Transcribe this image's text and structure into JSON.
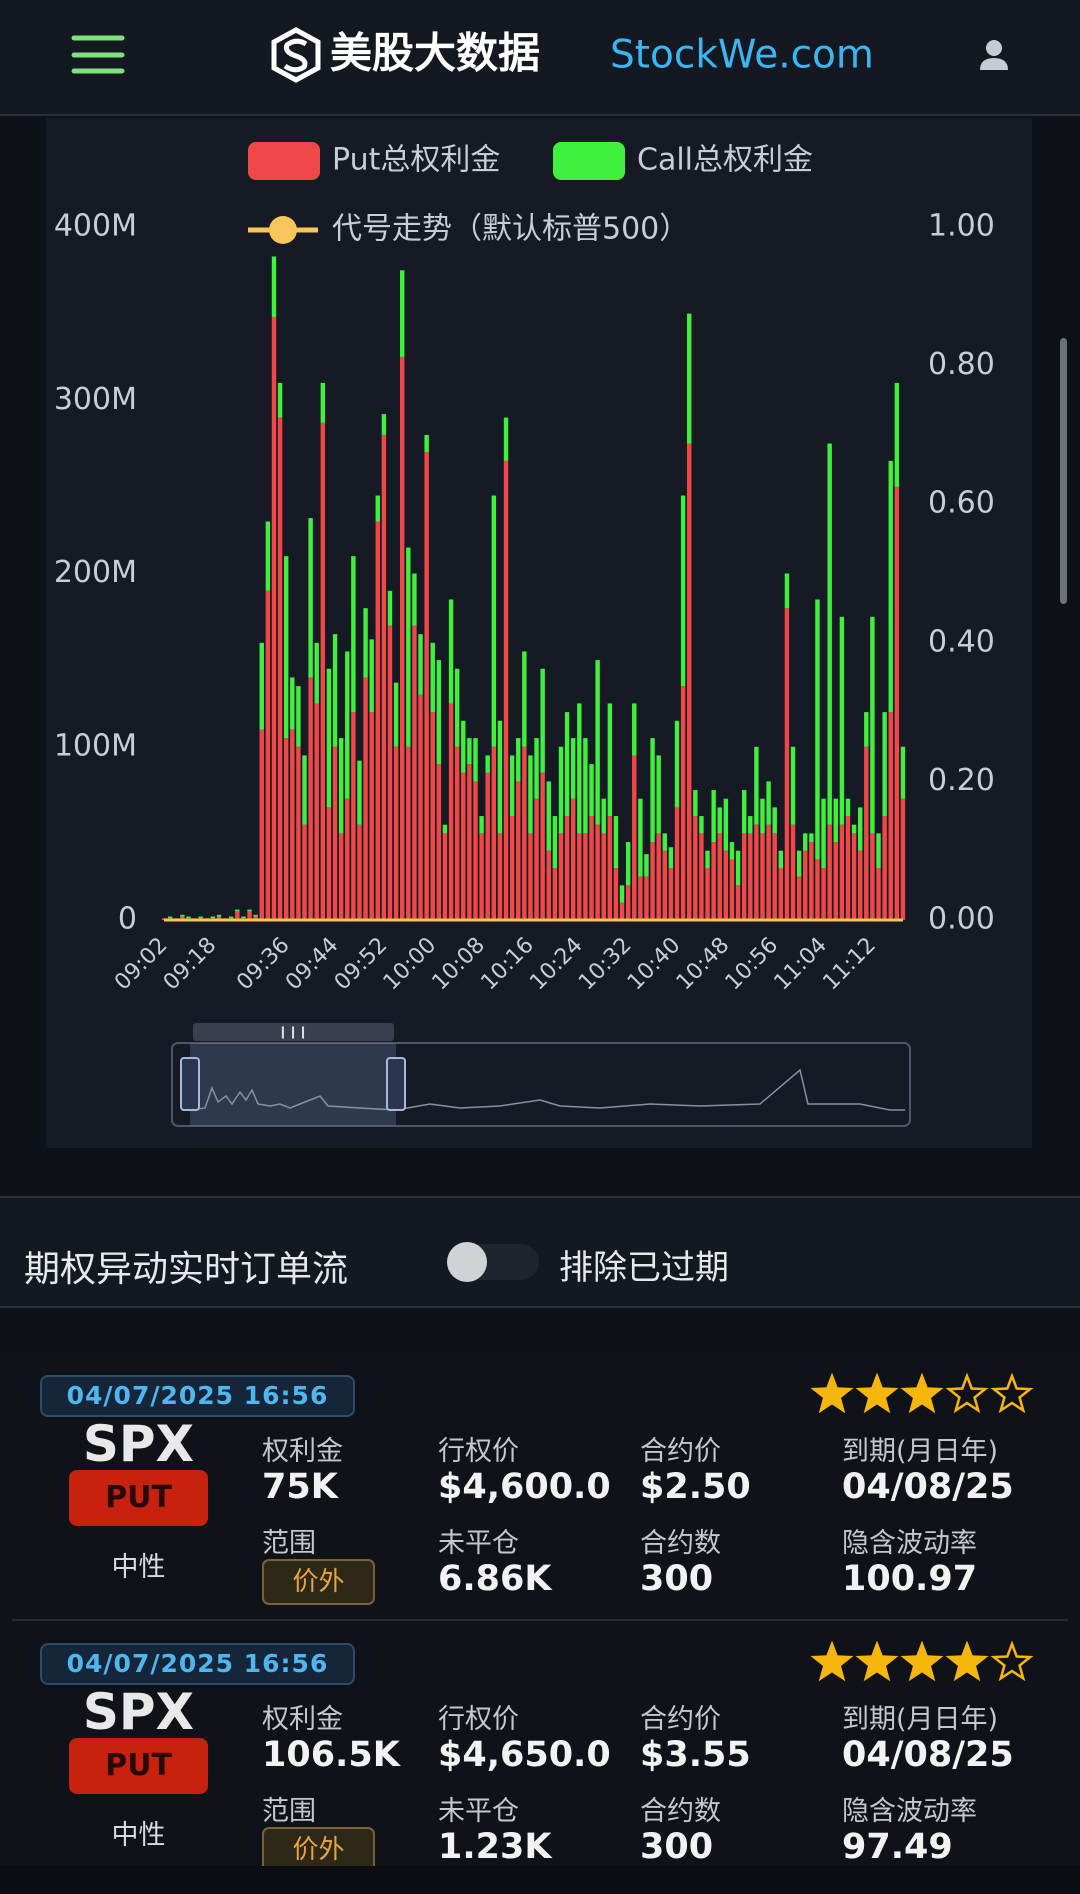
{
  "header": {
    "brand": "美股大数据",
    "site": "StockWe.com"
  },
  "chart_data": {
    "type": "bar",
    "stacked": true,
    "grid": false,
    "legend": "top",
    "categories": [
      "09:02",
      null,
      null,
      null,
      null,
      null,
      null,
      null,
      "09:18",
      null,
      null,
      null,
      null,
      null,
      null,
      null,
      null,
      null,
      null,
      null,
      "09:36",
      null,
      null,
      null,
      null,
      null,
      null,
      null,
      "09:44",
      null,
      null,
      null,
      null,
      null,
      null,
      null,
      "09:52",
      null,
      null,
      null,
      null,
      null,
      null,
      null,
      "10:00",
      null,
      null,
      null,
      null,
      null,
      null,
      null,
      "10:08",
      null,
      null,
      null,
      null,
      null,
      null,
      null,
      "10:16",
      null,
      null,
      null,
      null,
      null,
      null,
      null,
      "10:24",
      null,
      null,
      null,
      null,
      null,
      null,
      null,
      "10:32",
      null,
      null,
      null,
      null,
      null,
      null,
      null,
      "10:40",
      null,
      null,
      null,
      null,
      null,
      null,
      null,
      "10:48",
      null,
      null,
      null,
      null,
      null,
      null,
      null,
      "10:56",
      null,
      null,
      null,
      null,
      null,
      null,
      null,
      "11:04",
      null,
      null,
      null,
      null,
      null,
      null,
      null,
      "11:12",
      null,
      null,
      null,
      null,
      null
    ],
    "ylim": [
      0,
      400000000
    ],
    "yticks": [
      {
        "value": 0,
        "label": "0"
      },
      {
        "value": 100000000,
        "label": "100M"
      },
      {
        "value": 200000000,
        "label": "200M"
      },
      {
        "value": 300000000,
        "label": "300M"
      },
      {
        "value": 400000000,
        "label": "400M"
      }
    ],
    "y2lim": [
      0,
      1
    ],
    "y2ticks": [
      {
        "value": 0,
        "label": "0.00"
      },
      {
        "value": 0.2,
        "label": "0.20"
      },
      {
        "value": 0.4,
        "label": "0.40"
      },
      {
        "value": 0.6,
        "label": "0.60"
      },
      {
        "value": 0.8,
        "label": "0.80"
      },
      {
        "value": 1,
        "label": "1.00"
      }
    ],
    "series": [
      {
        "name": "Put总权利金",
        "color": "#f04848",
        "values": [
          1000000,
          1000000,
          1000000,
          2000000,
          1000000,
          1000000,
          1000000,
          1000000,
          1000000,
          2000000,
          1000000,
          1000000,
          5000000,
          1000000,
          5000000,
          2000000,
          110000000,
          190000000,
          348000000,
          290000000,
          105000000,
          110000000,
          100000000,
          55000000,
          140000000,
          125000000,
          287000000,
          65000000,
          100000000,
          50000000,
          70000000,
          120000000,
          55000000,
          140000000,
          120000000,
          230000000,
          280000000,
          170000000,
          100000000,
          325000000,
          100000000,
          170000000,
          130000000,
          270000000,
          120000000,
          90000000,
          50000000,
          125000000,
          100000000,
          85000000,
          90000000,
          80000000,
          50000000,
          85000000,
          100000000,
          50000000,
          265000000,
          60000000,
          80000000,
          100000000,
          50000000,
          70000000,
          85000000,
          40000000,
          30000000,
          50000000,
          60000000,
          70000000,
          50000000,
          50000000,
          60000000,
          55000000,
          50000000,
          60000000,
          30000000,
          10000000,
          20000000,
          95000000,
          25000000,
          25000000,
          45000000,
          50000000,
          40000000,
          30000000,
          65000000,
          135000000,
          275000000,
          60000000,
          50000000,
          30000000,
          45000000,
          50000000,
          40000000,
          35000000,
          20000000,
          50000000,
          50000000,
          55000000,
          50000000,
          55000000,
          50000000,
          30000000,
          180000000,
          55000000,
          25000000,
          40000000,
          45000000,
          35000000,
          30000000,
          55000000,
          45000000,
          55000000,
          60000000,
          50000000,
          40000000,
          100000000,
          50000000,
          30000000,
          60000000,
          120000000,
          250000000,
          70000000
        ]
      },
      {
        "name": "Call总权利金",
        "color": "#3ff03f",
        "values": [
          0,
          1000000,
          0,
          1000000,
          1000000,
          0,
          1000000,
          0,
          1000000,
          1000000,
          0,
          1000000,
          1000000,
          1000000,
          1000000,
          1000000,
          50000000,
          40000000,
          35000000,
          20000000,
          105000000,
          30000000,
          35000000,
          40000000,
          92000000,
          35000000,
          23000000,
          80000000,
          65000000,
          55000000,
          85000000,
          90000000,
          37000000,
          40000000,
          42000000,
          15000000,
          12000000,
          20000000,
          37000000,
          50000000,
          115000000,
          30000000,
          35000000,
          10000000,
          40000000,
          60000000,
          5000000,
          60000000,
          45000000,
          30000000,
          15000000,
          25000000,
          10000000,
          10000000,
          145000000,
          65000000,
          25000000,
          35000000,
          25000000,
          55000000,
          45000000,
          35000000,
          60000000,
          40000000,
          30000000,
          50000000,
          60000000,
          35000000,
          75000000,
          55000000,
          30000000,
          95000000,
          20000000,
          65000000,
          30000000,
          10000000,
          25000000,
          30000000,
          45000000,
          13000000,
          60000000,
          45000000,
          10000000,
          12000000,
          50000000,
          110000000,
          75000000,
          15000000,
          10000000,
          10000000,
          30000000,
          15000000,
          30000000,
          10000000,
          20000000,
          25000000,
          10000000,
          45000000,
          20000000,
          25000000,
          15000000,
          10000000,
          20000000,
          45000000,
          15000000,
          10000000,
          5000000,
          150000000,
          40000000,
          220000000,
          25000000,
          120000000,
          10000000,
          5000000,
          25000000,
          20000000,
          125000000,
          20000000,
          60000000,
          145000000,
          60000000,
          30000000
        ]
      },
      {
        "name": "代号走势（默认标普500）",
        "color": "#f7c55a",
        "axis": "y2",
        "type": "line",
        "values": [
          0,
          0,
          0,
          0,
          0,
          0,
          0,
          0,
          0,
          0,
          0,
          0,
          0,
          0,
          0,
          0,
          0,
          0,
          0,
          0,
          0,
          0,
          0,
          0,
          0,
          0,
          0,
          0,
          0,
          0,
          0,
          0,
          0,
          0,
          0,
          0,
          0,
          0,
          0,
          0,
          0,
          0,
          0,
          0,
          0,
          0,
          0,
          0,
          0,
          0,
          0,
          0,
          0,
          0,
          0,
          0,
          0,
          0,
          0,
          0,
          0,
          0,
          0,
          0,
          0,
          0,
          0,
          0,
          0,
          0,
          0,
          0,
          0,
          0,
          0,
          0,
          0,
          0,
          0,
          0,
          0,
          0,
          0,
          0,
          0,
          0,
          0,
          0,
          0,
          0,
          0,
          0,
          0,
          0,
          0,
          0,
          0,
          0,
          0,
          0,
          0,
          0,
          0,
          0,
          0,
          0,
          0,
          0,
          0,
          0,
          0,
          0,
          0,
          0,
          0,
          0,
          0,
          0,
          0,
          0,
          0,
          0
        ]
      }
    ]
  },
  "order_flow": {
    "title": "期权异动实时订单流",
    "toggle_label": "排除已过期",
    "cards": [
      {
        "datetime": "04/07/2025 16:56",
        "symbol": "SPX",
        "side": "PUT",
        "sentiment": "中性",
        "rating": 3,
        "fields": [
          {
            "label": "权利金",
            "value": "75K"
          },
          {
            "label": "行权价",
            "value": "$4,600.0"
          },
          {
            "label": "合约价",
            "value": "$2.50"
          },
          {
            "label": "到期(月日年)",
            "value": "04/08/25"
          },
          {
            "label": "范围",
            "value": "价外"
          },
          {
            "label": "未平仓",
            "value": "6.86K"
          },
          {
            "label": "合约数",
            "value": "300"
          },
          {
            "label": "隐含波动率",
            "value": "100.97"
          }
        ]
      },
      {
        "datetime": "04/07/2025 16:56",
        "symbol": "SPX",
        "side": "PUT",
        "sentiment": "中性",
        "rating": 4,
        "fields": [
          {
            "label": "权利金",
            "value": "106.5K"
          },
          {
            "label": "行权价",
            "value": "$4,650.0"
          },
          {
            "label": "合约价",
            "value": "$3.55"
          },
          {
            "label": "到期(月日年)",
            "value": "04/08/25"
          },
          {
            "label": "范围",
            "value": "价外"
          },
          {
            "label": "未平仓",
            "value": "1.23K"
          },
          {
            "label": "合约数",
            "value": "300"
          },
          {
            "label": "隐含波动率",
            "value": "97.49"
          }
        ]
      }
    ]
  }
}
